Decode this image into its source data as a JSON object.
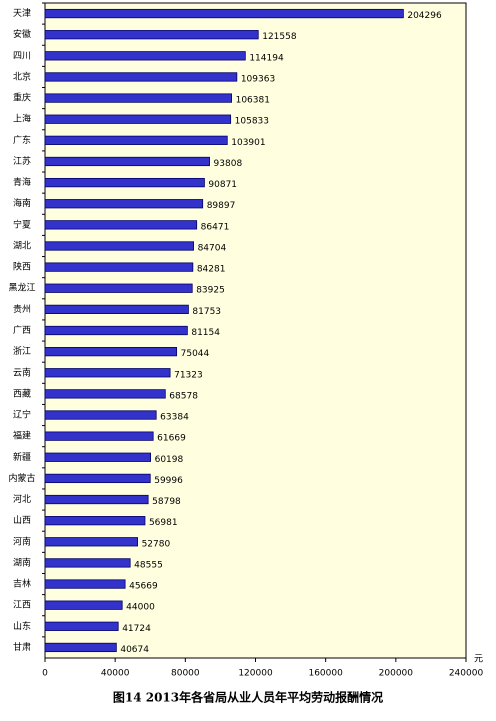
{
  "chart_data": {
    "type": "hbar",
    "title": "图14 2013年各省局从业人员年平均劳动报酬情况",
    "unit": "元",
    "categories": [
      "天津",
      "安徽",
      "四川",
      "北京",
      "重庆",
      "上海",
      "广东",
      "江苏",
      "青海",
      "海南",
      "宁夏",
      "湖北",
      "陕西",
      "黑龙江",
      "贵州",
      "广西",
      "浙江",
      "云南",
      "西藏",
      "辽宁",
      "福建",
      "新疆",
      "内蒙古",
      "河北",
      "山西",
      "河南",
      "湖南",
      "吉林",
      "江西",
      "山东",
      "甘肃"
    ],
    "values": [
      204296,
      121558,
      114194,
      109363,
      106381,
      105833,
      103901,
      93808,
      90871,
      89897,
      86471,
      84704,
      84281,
      83925,
      81753,
      81154,
      75044,
      71323,
      68578,
      63384,
      61669,
      60198,
      59996,
      58798,
      56981,
      52780,
      48555,
      45669,
      44000,
      41724,
      40674
    ],
    "color": "#3333cc",
    "background": "#ffffe0",
    "xlim": [
      0,
      240000
    ],
    "xticks": [
      0,
      40000,
      80000,
      120000,
      160000,
      200000,
      240000
    ]
  }
}
